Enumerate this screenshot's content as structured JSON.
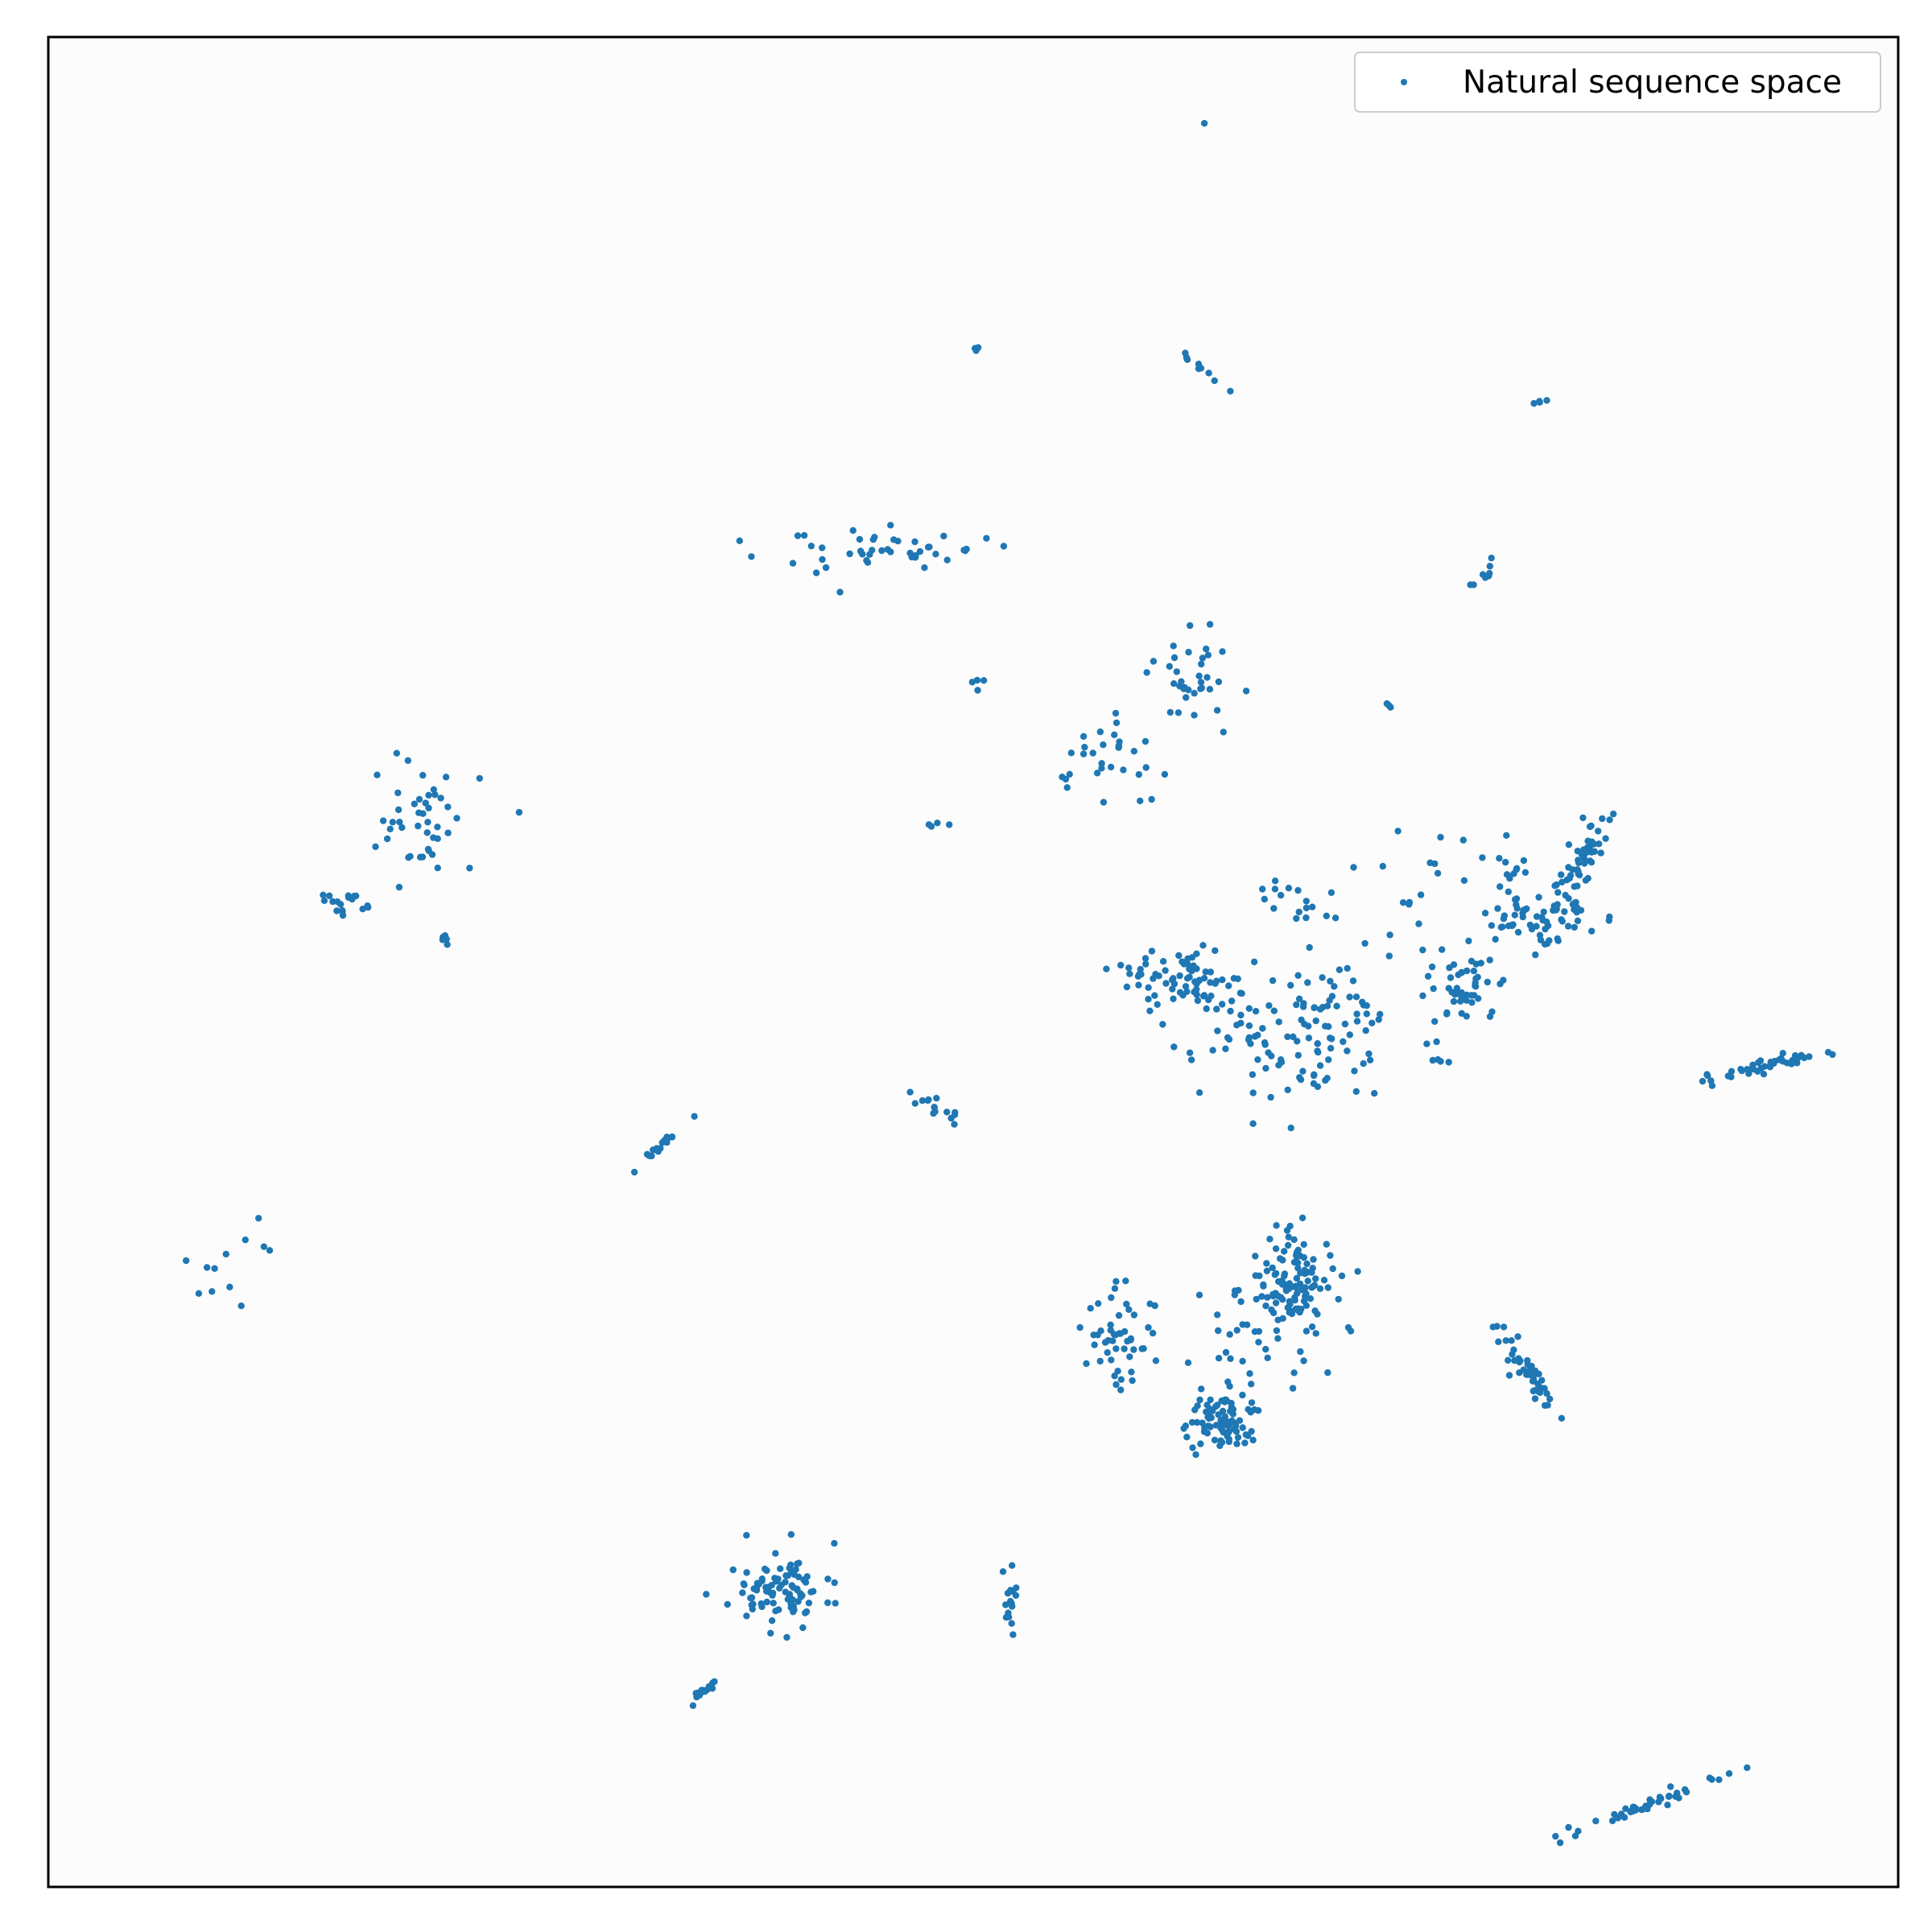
{
  "chart_data": {
    "type": "scatter",
    "title": "",
    "xlabel": "",
    "ylabel": "",
    "xlim": [
      0,
      100
    ],
    "ylim": [
      0,
      100
    ],
    "ticks_visible": false,
    "grid": false,
    "legend_position": "upper right",
    "colors": {
      "series": "#1f77b4",
      "axes_face": "#fcfcfc",
      "frame": "#000000",
      "legend_border": "#cccccc"
    },
    "series": [
      {
        "name": "Natural sequence space",
        "clusters": [
          {
            "center": [
              62.6,
              95.5
            ],
            "spread": [
              0.1,
              0.1
            ],
            "angle": 0,
            "count": 1,
            "seed": 1
          },
          {
            "center": [
              50.4,
              83.4
            ],
            "spread": [
              0.25,
              0.25
            ],
            "angle": 0,
            "count": 4,
            "seed": 2
          },
          {
            "center": [
              62.6,
              81.9
            ],
            "spread": [
              0.9,
              0.12
            ],
            "angle": -40,
            "count": 10,
            "seed": 3
          },
          {
            "center": [
              80.6,
              80.3
            ],
            "spread": [
              0.3,
              0.1
            ],
            "angle": 30,
            "count": 4,
            "seed": 4
          },
          {
            "center": [
              44.5,
              72.2
            ],
            "spread": [
              3.0,
              0.6
            ],
            "angle": 0,
            "count": 45,
            "seed": 5
          },
          {
            "center": [
              77.6,
              71.0
            ],
            "spread": [
              0.6,
              0.12
            ],
            "angle": 45,
            "count": 8,
            "seed": 6
          },
          {
            "center": [
              50.1,
              65.2
            ],
            "spread": [
              0.25,
              0.2
            ],
            "angle": 0,
            "count": 4,
            "seed": 7
          },
          {
            "center": [
              72.4,
              63.8
            ],
            "spread": [
              0.3,
              0.15
            ],
            "angle": 30,
            "count": 3,
            "seed": 8
          },
          {
            "center": [
              62.0,
              65.5
            ],
            "spread": [
              1.1,
              1.1
            ],
            "angle": 0,
            "count": 35,
            "seed": 9
          },
          {
            "center": [
              57.2,
              61.0
            ],
            "spread": [
              1.3,
              1.3
            ],
            "angle": 0,
            "count": 30,
            "seed": 10
          },
          {
            "center": [
              48.0,
              57.3
            ],
            "spread": [
              0.9,
              0.3
            ],
            "angle": 10,
            "count": 4,
            "seed": 11
          },
          {
            "center": [
              20.2,
              57.5
            ],
            "spread": [
              1.5,
              1.6
            ],
            "angle": 0,
            "count": 45,
            "seed": 12
          },
          {
            "center": [
              16.0,
              53.2
            ],
            "spread": [
              0.8,
              0.35
            ],
            "angle": 0,
            "count": 18,
            "seed": 13
          },
          {
            "center": [
              21.5,
              51.3
            ],
            "spread": [
              0.35,
              0.2
            ],
            "angle": -40,
            "count": 5,
            "seed": 14
          },
          {
            "center": [
              61.0,
              49.0
            ],
            "spread": [
              1.6,
              0.8
            ],
            "angle": 0,
            "count": 70,
            "seed": 15
          },
          {
            "center": [
              67.5,
              46.5
            ],
            "spread": [
              2.8,
              2.3
            ],
            "angle": 0,
            "count": 120,
            "seed": 16
          },
          {
            "center": [
              67.0,
              53.5
            ],
            "spread": [
              0.5,
              1.2
            ],
            "angle": 70,
            "count": 16,
            "seed": 17
          },
          {
            "center": [
              73.5,
              50.0
            ],
            "spread": [
              2.0,
              1.5
            ],
            "angle": 0,
            "count": 20,
            "seed": 18
          },
          {
            "center": [
              76.9,
              48.6
            ],
            "spread": [
              0.8,
              0.9
            ],
            "angle": 0,
            "count": 40,
            "seed": 19
          },
          {
            "center": [
              80.8,
              52.2
            ],
            "spread": [
              1.4,
              0.8
            ],
            "angle": 0,
            "count": 55,
            "seed": 20
          },
          {
            "center": [
              83.0,
              55.6
            ],
            "spread": [
              1.2,
              0.4
            ],
            "angle": 60,
            "count": 50,
            "seed": 21
          },
          {
            "center": [
              78.8,
              53.8
            ],
            "spread": [
              1.3,
              1.5
            ],
            "angle": 0,
            "count": 25,
            "seed": 22
          },
          {
            "center": [
              74.5,
              55.0
            ],
            "spread": [
              1.5,
              1.5
            ],
            "angle": 0,
            "count": 12,
            "seed": 23
          },
          {
            "center": [
              75.0,
              45.3
            ],
            "spread": [
              0.5,
              0.5
            ],
            "angle": 0,
            "count": 6,
            "seed": 24
          },
          {
            "center": [
              92.5,
              44.3
            ],
            "spread": [
              1.4,
              0.18
            ],
            "angle": 12,
            "count": 40,
            "seed": 25
          },
          {
            "center": [
              89.6,
              43.5
            ],
            "spread": [
              0.3,
              0.3
            ],
            "angle": 0,
            "count": 4,
            "seed": 26
          },
          {
            "center": [
              47.8,
              42.2
            ],
            "spread": [
              0.9,
              0.15
            ],
            "angle": -35,
            "count": 15,
            "seed": 27
          },
          {
            "center": [
              33.2,
              40.1
            ],
            "spread": [
              0.7,
              0.12
            ],
            "angle": 38,
            "count": 18,
            "seed": 28
          },
          {
            "center": [
              9.5,
              33.5
            ],
            "spread": [
              1.5,
              1.2
            ],
            "angle": 0,
            "count": 12,
            "seed": 29
          },
          {
            "center": [
              67.3,
              32.7
            ],
            "spread": [
              1.2,
              1.3
            ],
            "angle": 0,
            "count": 120,
            "seed": 30
          },
          {
            "center": [
              66.0,
              29.2
            ],
            "spread": [
              2.2,
              1.4
            ],
            "angle": 0,
            "count": 30,
            "seed": 31
          },
          {
            "center": [
              58.0,
              29.8
            ],
            "spread": [
              1.0,
              1.3
            ],
            "angle": 0,
            "count": 50,
            "seed": 32
          },
          {
            "center": [
              63.4,
              25.2
            ],
            "spread": [
              1.1,
              0.8
            ],
            "angle": 0,
            "count": 90,
            "seed": 33
          },
          {
            "center": [
              79.8,
              28.0
            ],
            "spread": [
              1.8,
              0.3
            ],
            "angle": -55,
            "count": 45,
            "seed": 34
          },
          {
            "center": [
              39.2,
              16.2
            ],
            "spread": [
              1.5,
              1.0
            ],
            "angle": 0,
            "count": 90,
            "seed": 35
          },
          {
            "center": [
              51.9,
              15.2
            ],
            "spread": [
              0.25,
              1.3
            ],
            "angle": 0,
            "count": 16,
            "seed": 36
          },
          {
            "center": [
              35.7,
              10.8
            ],
            "spread": [
              0.7,
              0.15
            ],
            "angle": 40,
            "count": 14,
            "seed": 37
          },
          {
            "center": [
              87.2,
              4.7
            ],
            "spread": [
              2.2,
              0.2
            ],
            "angle": 20,
            "count": 45,
            "seed": 38
          }
        ]
      }
    ]
  }
}
